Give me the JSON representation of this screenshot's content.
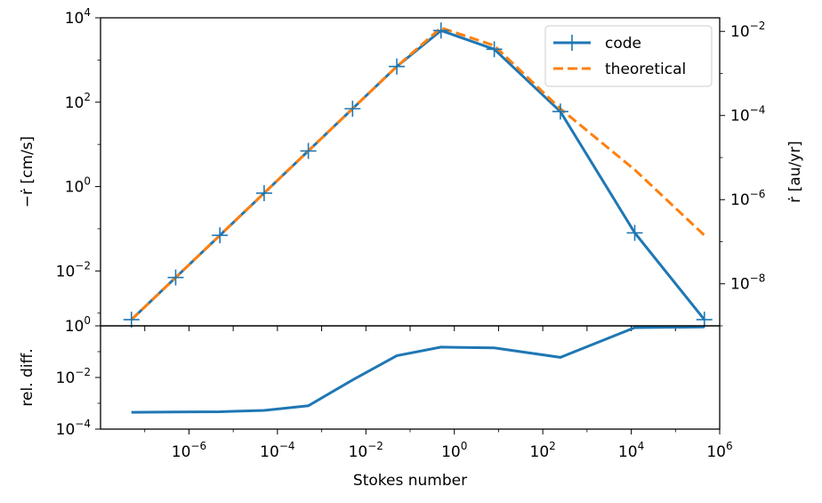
{
  "chart_data": [
    {
      "panel": "top",
      "type": "line",
      "xscale": "log",
      "yscale": "log",
      "xlim": [
        1e-08,
        1000000.0
      ],
      "ylim": [
        0.0005,
        10000
      ],
      "ylabel": "−ṙ [cm/s]",
      "y2label": "ṙ [au/yr]",
      "y2lim": [
        1e-09,
        0.021
      ],
      "yticks": [
        {
          "value": 0.01,
          "base": "10",
          "exp": "−2"
        },
        {
          "value": 1,
          "base": "10",
          "exp": "0"
        },
        {
          "value": 100,
          "base": "10",
          "exp": "2"
        },
        {
          "value": 10000,
          "base": "10",
          "exp": "4"
        }
      ],
      "y2ticks": [
        {
          "value": 1e-08,
          "base": "10",
          "exp": "−8"
        },
        {
          "value": 1e-06,
          "base": "10",
          "exp": "−6"
        },
        {
          "value": 0.0001,
          "base": "10",
          "exp": "−4"
        },
        {
          "value": 0.01,
          "base": "10",
          "exp": "−2"
        }
      ],
      "grid": false,
      "legend_position": "top-right",
      "series": [
        {
          "name": "code",
          "color": "#1f77b4",
          "style": "solid",
          "marker": "plus",
          "x": [
            5e-08,
            5e-07,
            5e-06,
            5e-05,
            0.0005,
            0.005,
            0.05,
            0.5,
            8,
            250,
            12000,
            450000
          ],
          "y": [
            0.0007,
            0.007,
            0.07,
            0.7,
            7,
            70,
            700,
            5000,
            1800,
            60,
            0.08,
            0.0007
          ]
        },
        {
          "name": "theoretical",
          "color": "#ff7f0e",
          "style": "dashed",
          "x": [
            5e-08,
            5e-07,
            5e-06,
            5e-05,
            0.0005,
            0.005,
            0.05,
            0.5,
            8,
            250,
            12000,
            450000
          ],
          "y": [
            0.0007,
            0.007,
            0.07,
            0.7,
            7,
            70,
            700,
            5800,
            2200,
            70,
            2.5,
            0.07
          ]
        }
      ]
    },
    {
      "panel": "bottom",
      "type": "line",
      "xscale": "log",
      "yscale": "log",
      "xlim": [
        1e-08,
        1000000.0
      ],
      "ylim": [
        0.0001,
        1
      ],
      "xlabel": "Stokes number",
      "ylabel": "rel. diff.",
      "xticks": [
        {
          "value": 1e-06,
          "base": "10",
          "exp": "−6"
        },
        {
          "value": 0.0001,
          "base": "10",
          "exp": "−4"
        },
        {
          "value": 0.01,
          "base": "10",
          "exp": "−2"
        },
        {
          "value": 1,
          "base": "10",
          "exp": "0"
        },
        {
          "value": 100,
          "base": "10",
          "exp": "2"
        },
        {
          "value": 10000,
          "base": "10",
          "exp": "4"
        },
        {
          "value": 1000000,
          "base": "10",
          "exp": "6"
        }
      ],
      "yticks": [
        {
          "value": 0.0001,
          "base": "10",
          "exp": "−4"
        },
        {
          "value": 0.01,
          "base": "10",
          "exp": "−2"
        },
        {
          "value": 1,
          "base": "10",
          "exp": "0"
        }
      ],
      "grid": false,
      "series": [
        {
          "color": "#1f77b4",
          "style": "solid",
          "x": [
            5e-08,
            5e-07,
            5e-06,
            5e-05,
            0.0005,
            0.005,
            0.05,
            0.5,
            8,
            250,
            12000,
            450000
          ],
          "y": [
            0.00045,
            0.00046,
            0.00047,
            0.00053,
            0.0008,
            0.008,
            0.07,
            0.15,
            0.14,
            0.06,
            0.85,
            0.9
          ]
        }
      ]
    }
  ]
}
